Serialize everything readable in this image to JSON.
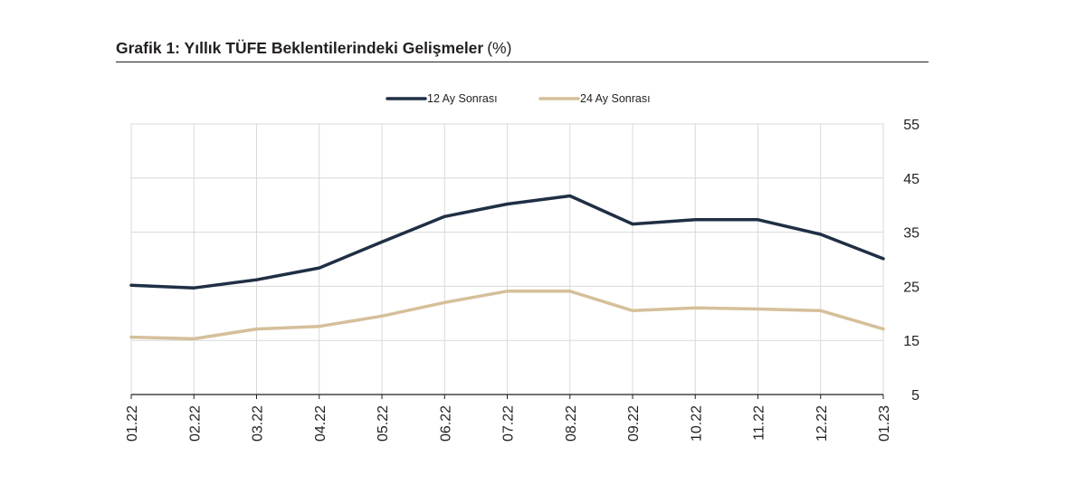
{
  "header": {
    "title": "Grafik 1: Yıllık TÜFE Beklentilerindeki Gelişmeler",
    "unit": "(%)"
  },
  "chart_data": {
    "type": "line",
    "title": "Grafik 1: Yıllık TÜFE Beklentilerindeki Gelişmeler",
    "unit_note": "(%)",
    "xlabel": "",
    "ylabel": "",
    "categories": [
      "01.22",
      "02.22",
      "03.22",
      "04.22",
      "05.22",
      "06.22",
      "07.22",
      "08.22",
      "09.22",
      "10.22",
      "11.22",
      "12.22",
      "01.23"
    ],
    "ylim": [
      5,
      55
    ],
    "yticks": [
      5,
      15,
      25,
      35,
      45,
      55
    ],
    "grid": true,
    "legend_position": "top-center",
    "y_axis_side": "right",
    "series": [
      {
        "name": "12 Ay Sonrası",
        "color": "#1f2f45",
        "values": [
          25.2,
          24.7,
          26.2,
          28.4,
          33.2,
          37.9,
          40.2,
          41.7,
          36.5,
          37.3,
          37.3,
          34.6,
          30.1
        ]
      },
      {
        "name": "24 Ay Sonrası",
        "color": "#d5bf9a",
        "values": [
          15.6,
          15.3,
          17.1,
          17.6,
          19.5,
          22.0,
          24.1,
          24.1,
          20.5,
          21.0,
          20.8,
          20.5,
          17.1
        ]
      }
    ]
  }
}
